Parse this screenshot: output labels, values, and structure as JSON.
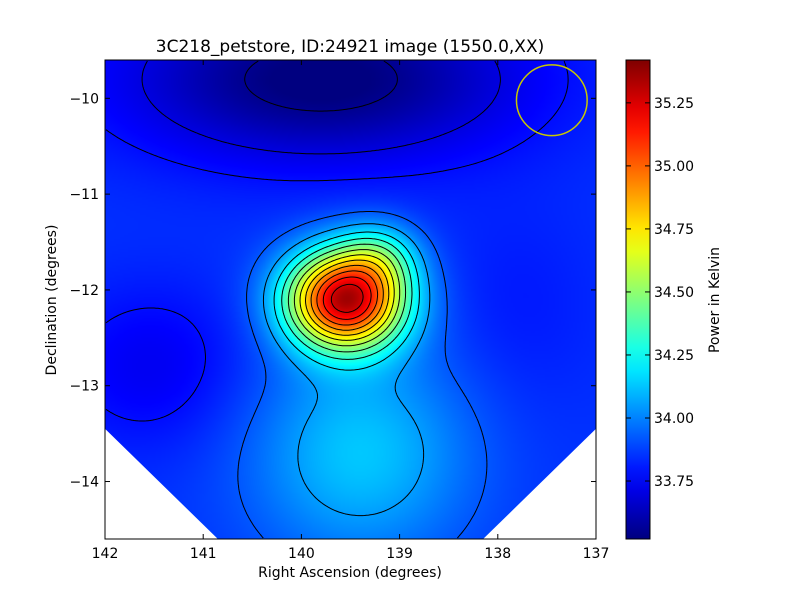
{
  "chart_data": {
    "type": "heatmap",
    "title": "3C218_petstore, ID:24921 image (1550.0,XX)",
    "xlabel": "Right Ascension (degrees)",
    "ylabel": "Declination (degrees)",
    "colorbar_label": "Power in Kelvin",
    "colormap": "jet",
    "x_axis_inverted": true,
    "xlim": [
      142.0,
      137.0
    ],
    "ylim": [
      -14.6,
      -9.6
    ],
    "x_ticks": [
      142,
      141,
      140,
      139,
      138,
      137
    ],
    "x_tick_labels": [
      "142",
      "141",
      "140",
      "139",
      "138",
      "137"
    ],
    "y_ticks": [
      -10,
      -11,
      -12,
      -13,
      -14
    ],
    "y_tick_labels": [
      "−10",
      "−11",
      "−12",
      "−13",
      "−14"
    ],
    "colorbar_range": [
      33.52,
      35.42
    ],
    "colorbar_ticks": [
      33.75,
      34.0,
      34.25,
      34.5,
      34.75,
      35.0,
      35.25
    ],
    "colorbar_tick_labels": [
      "33.75",
      "34.00",
      "34.25",
      "34.50",
      "34.75",
      "35.00",
      "35.25"
    ],
    "background_level": 33.85,
    "components": [
      {
        "ra": 139.55,
        "dec": -12.1,
        "amplitude": 1.45,
        "sigma_ra": 0.42,
        "sigma_dec": 0.36
      },
      {
        "ra": 139.2,
        "dec": -11.65,
        "amplitude": 0.28,
        "sigma_ra": 0.28,
        "sigma_dec": 0.25
      },
      {
        "ra": 139.4,
        "dec": -13.7,
        "amplitude": 0.28,
        "sigma_ra": 0.8,
        "sigma_dec": 0.8
      },
      {
        "ra": 139.8,
        "dec": -9.8,
        "amplitude": -0.35,
        "sigma_ra": 1.4,
        "sigma_dec": 0.6
      },
      {
        "ra": 141.5,
        "dec": -12.8,
        "amplitude": -0.12,
        "sigma_ra": 0.7,
        "sigma_dec": 0.6
      },
      {
        "ra": 137.8,
        "dec": -12.2,
        "amplitude": -0.05,
        "sigma_ra": 0.6,
        "sigma_dec": 0.8
      }
    ],
    "contour_levels": [
      33.55,
      33.7,
      33.78,
      33.92,
      34.05,
      34.18,
      34.3,
      34.42,
      34.54,
      34.66,
      34.78,
      34.9,
      35.02,
      35.14,
      35.26,
      35.38
    ],
    "beam_circle": {
      "ra": 137.45,
      "dec": -10.02,
      "radius_deg": 0.36,
      "color": "#c8c800"
    },
    "mask_corner_offset_deg": 1.15
  }
}
